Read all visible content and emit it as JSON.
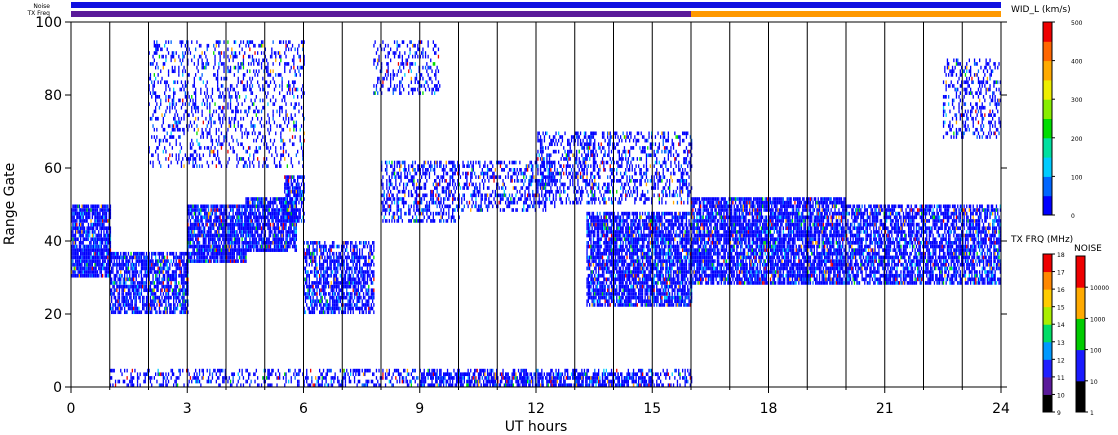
{
  "chart_data": {
    "type": "heatmap",
    "title": "",
    "xlabel": "UT hours",
    "ylabel": "Range Gate",
    "xlim": [
      0,
      24
    ],
    "ylim": [
      0,
      100
    ],
    "x_ticks": [
      0,
      3,
      6,
      9,
      12,
      15,
      18,
      21,
      24
    ],
    "y_ticks": [
      0,
      20,
      40,
      60,
      80,
      100
    ],
    "vertical_lines_hours": [
      1,
      2,
      3,
      4,
      5,
      6,
      7,
      8,
      9,
      10,
      11,
      12,
      13,
      14,
      15,
      16,
      17,
      18,
      19,
      20,
      21,
      22,
      23
    ],
    "grid": false,
    "noise_bar_label": "Noise",
    "tx_freq_bar_label": "TX Freq",
    "tx_freq_segments": [
      {
        "from": 0,
        "to": 16,
        "color": "#5a1a9a"
      },
      {
        "from": 16,
        "to": 24,
        "color": "#ff9900"
      }
    ],
    "noise_bar_color": "#1010e0",
    "width_colorbar": {
      "label": "WID_L (km/s)",
      "ticks": [
        0,
        100,
        200,
        300,
        400,
        500
      ],
      "colors": [
        "#0000ff",
        "#0066ff",
        "#00ccff",
        "#00e0a0",
        "#00dd00",
        "#88ee00",
        "#eeee00",
        "#ffaa00",
        "#ff6600",
        "#ee0000"
      ]
    },
    "txfreq_colorbar": {
      "label": "TX FRQ (MHz)",
      "ticks": [
        9,
        10,
        11,
        12,
        13,
        14,
        15,
        16,
        17,
        18
      ],
      "colors": [
        "#000000",
        "#5a1a9a",
        "#2020ff",
        "#0099ff",
        "#00dd66",
        "#aaee00",
        "#ffcc00",
        "#ff8800",
        "#ee0000"
      ]
    },
    "noise_colorbar": {
      "label": "NOISE",
      "ticks": [
        "1",
        "10",
        "100",
        "1000",
        "10000"
      ],
      "colors": [
        "#000000",
        "#1a1aff",
        "#00cc00",
        "#ffaa00",
        "#ee0000"
      ]
    },
    "echo_regions": [
      {
        "t0": 0.0,
        "t1": 1.0,
        "g0": 30,
        "g1": 50,
        "density": 0.85
      },
      {
        "t0": 1.0,
        "t1": 3.0,
        "g0": 20,
        "g1": 37,
        "density": 0.75
      },
      {
        "t0": 3.0,
        "t1": 4.5,
        "g0": 34,
        "g1": 50,
        "density": 0.85
      },
      {
        "t0": 4.5,
        "t1": 5.8,
        "g0": 37,
        "g1": 52,
        "density": 0.85
      },
      {
        "t0": 5.5,
        "t1": 6.0,
        "g0": 45,
        "g1": 58,
        "density": 0.7
      },
      {
        "t0": 6.0,
        "t1": 7.8,
        "g0": 20,
        "g1": 40,
        "density": 0.65
      },
      {
        "t0": 2.0,
        "t1": 6.0,
        "g0": 60,
        "g1": 95,
        "density": 0.25
      },
      {
        "t0": 8.0,
        "t1": 10.0,
        "g0": 45,
        "g1": 62,
        "density": 0.45
      },
      {
        "t0": 7.8,
        "t1": 9.5,
        "g0": 80,
        "g1": 95,
        "density": 0.3
      },
      {
        "t0": 10.0,
        "t1": 12.5,
        "g0": 48,
        "g1": 62,
        "density": 0.35
      },
      {
        "t0": 12.0,
        "t1": 13.5,
        "g0": 50,
        "g1": 70,
        "density": 0.35
      },
      {
        "t0": 13.0,
        "t1": 16.0,
        "g0": 50,
        "g1": 70,
        "density": 0.35
      },
      {
        "t0": 13.3,
        "t1": 16.0,
        "g0": 22,
        "g1": 48,
        "density": 0.8
      },
      {
        "t0": 16.0,
        "t1": 20.0,
        "g0": 28,
        "g1": 52,
        "density": 0.8
      },
      {
        "t0": 20.0,
        "t1": 24.0,
        "g0": 28,
        "g1": 50,
        "density": 0.7
      },
      {
        "t0": 22.5,
        "t1": 24.0,
        "g0": 68,
        "g1": 90,
        "density": 0.3
      },
      {
        "t0": 1.0,
        "t1": 16.0,
        "g0": 0,
        "g1": 5,
        "density": 0.35
      },
      {
        "t0": 9.0,
        "t1": 15.0,
        "g0": 0,
        "g1": 4,
        "density": 0.6
      }
    ]
  }
}
